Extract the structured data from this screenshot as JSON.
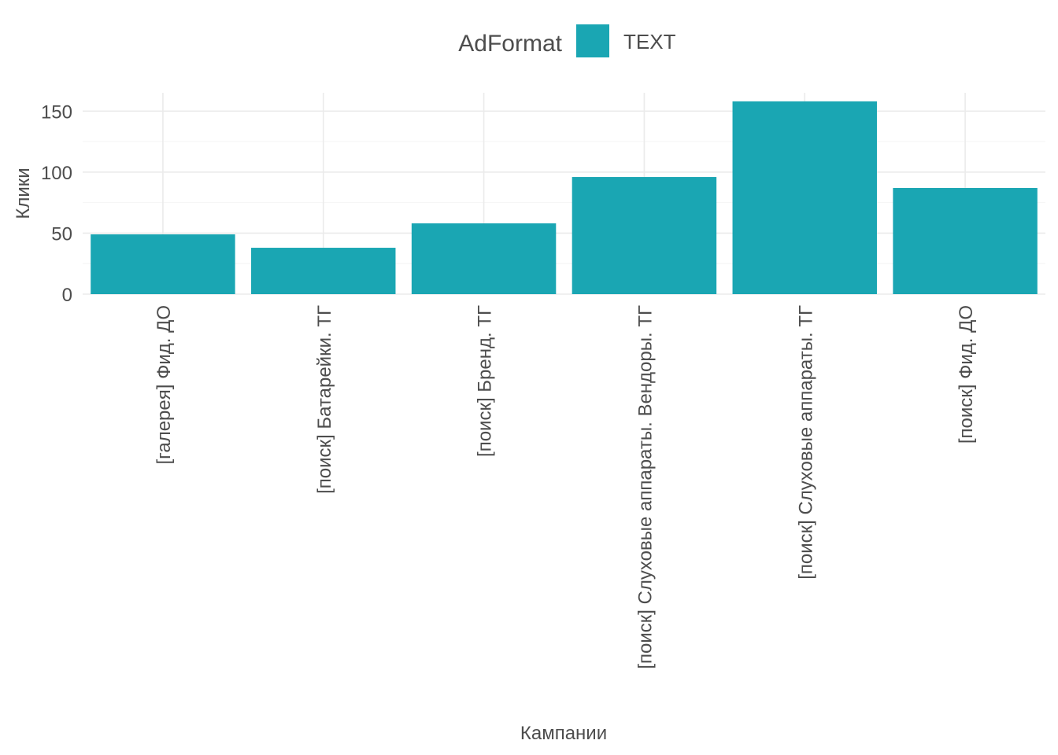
{
  "chart_data": {
    "type": "bar",
    "legend": {
      "title": "AdFormat",
      "position": "top",
      "entries": [
        {
          "label": "TEXT",
          "color": "#1aa6b3"
        }
      ]
    },
    "xlabel": "Кампании",
    "ylabel": "Клики",
    "categories": [
      "[галерея] Фид. ДО",
      "[поиск] Батарейки. ТГ",
      "[поиск] Бренд. ТГ",
      "[поиск] Слуховые аппараты. Вендоры. ТГ",
      "[поиск] Слуховые аппараты. ТГ",
      "[поиск] Фид. ДО"
    ],
    "series": [
      {
        "name": "TEXT",
        "color": "#1aa6b3",
        "values": [
          49,
          38,
          58,
          96,
          158,
          87
        ]
      }
    ],
    "ylim": [
      0,
      165
    ],
    "yticks": [
      0,
      50,
      100,
      150
    ],
    "grid": true,
    "colors": {
      "bar": "#1aa6b3",
      "grid_major": "#ebebeb",
      "grid_minor": "#f4f4f4",
      "text": "#4d4d4d"
    }
  }
}
